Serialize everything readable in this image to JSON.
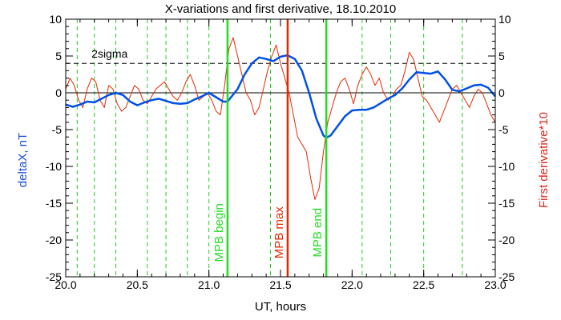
{
  "chart_data": {
    "type": "line",
    "title": "X-variations and first derivative, 18.10.2010",
    "xlabel": "UT, hours",
    "ylabel_left": "deltaX, nT",
    "ylabel_right": "First derivative*10",
    "xlim": [
      20.0,
      23.0
    ],
    "ylim": [
      -25,
      10
    ],
    "x_ticks": [
      "20.0",
      "20.5",
      "21.0",
      "21.5",
      "22.0",
      "22.5",
      "23.0"
    ],
    "y_ticks_left": [
      "10",
      "5",
      "0",
      "-5",
      "-10",
      "-15",
      "-20",
      "-25"
    ],
    "y_ticks_right": [
      "10",
      "5",
      "0",
      "-5",
      "-10",
      "-15",
      "-20",
      "-25"
    ],
    "colors": {
      "deltaX": "#0050e6",
      "derivative": "#e62800",
      "mpb_boundary": "#22dd22",
      "mpb_max": "#e62800",
      "dashed_green": "#22cc22",
      "axis": "#000000",
      "left_label": "#1a4fd6",
      "right_label": "#e0281e"
    },
    "threshold": {
      "label": "2sigma",
      "value": 4.0
    },
    "zero_line": 0,
    "series": [
      {
        "name": "deltaX, nT",
        "axis": "left",
        "x": [
          20.0,
          20.05,
          20.1,
          20.15,
          20.2,
          20.25,
          20.3,
          20.35,
          20.4,
          20.45,
          20.5,
          20.55,
          20.6,
          20.65,
          20.7,
          20.75,
          20.8,
          20.85,
          20.9,
          20.95,
          21.0,
          21.05,
          21.1,
          21.13,
          21.2,
          21.25,
          21.3,
          21.35,
          21.4,
          21.45,
          21.5,
          21.55,
          21.6,
          21.65,
          21.7,
          21.75,
          21.8,
          21.82,
          21.85,
          21.9,
          21.95,
          22.0,
          22.05,
          22.1,
          22.15,
          22.2,
          22.25,
          22.3,
          22.35,
          22.4,
          22.45,
          22.5,
          22.55,
          22.6,
          22.65,
          22.7,
          22.75,
          22.8,
          22.85,
          22.9,
          22.95,
          23.0
        ],
        "y": [
          -1.6,
          -1.9,
          -1.6,
          -1.2,
          -1.3,
          -0.8,
          -0.3,
          0.0,
          -0.3,
          -1.2,
          -1.7,
          -1.3,
          -1.0,
          -0.8,
          -1.1,
          -1.4,
          -1.5,
          -1.4,
          -0.9,
          -0.5,
          0.0,
          -0.6,
          -1.2,
          -1.2,
          0.5,
          2.5,
          4.0,
          4.8,
          4.6,
          4.3,
          4.9,
          5.1,
          4.6,
          3.0,
          0.0,
          -3.5,
          -5.8,
          -6.1,
          -5.8,
          -4.5,
          -3.2,
          -2.4,
          -2.3,
          -2.3,
          -2.0,
          -1.4,
          -0.8,
          -0.3,
          0.6,
          1.8,
          2.8,
          2.7,
          2.6,
          2.9,
          1.8,
          0.4,
          0.2,
          0.6,
          1.0,
          1.1,
          0.7,
          -0.5
        ]
      },
      {
        "name": "First derivative*10",
        "axis": "right",
        "x": [
          20.0,
          20.03,
          20.06,
          20.09,
          20.12,
          20.15,
          20.18,
          20.21,
          20.24,
          20.27,
          20.3,
          20.33,
          20.36,
          20.39,
          20.42,
          20.45,
          20.48,
          20.51,
          20.54,
          20.57,
          20.6,
          20.63,
          20.66,
          20.69,
          20.72,
          20.75,
          20.78,
          20.81,
          20.84,
          20.87,
          20.9,
          20.93,
          20.96,
          20.99,
          21.02,
          21.05,
          21.08,
          21.11,
          21.14,
          21.17,
          21.2,
          21.23,
          21.26,
          21.29,
          21.32,
          21.35,
          21.38,
          21.41,
          21.44,
          21.47,
          21.5,
          21.53,
          21.56,
          21.59,
          21.62,
          21.65,
          21.68,
          21.71,
          21.74,
          21.77,
          21.8,
          21.83,
          21.86,
          21.89,
          21.92,
          21.95,
          21.98,
          22.01,
          22.04,
          22.07,
          22.1,
          22.13,
          22.16,
          22.19,
          22.22,
          22.25,
          22.28,
          22.31,
          22.34,
          22.37,
          22.4,
          22.43,
          22.46,
          22.49,
          22.52,
          22.55,
          22.58,
          22.61,
          22.64,
          22.67,
          22.7,
          22.73,
          22.76,
          22.79,
          22.82,
          22.85,
          22.88,
          22.91,
          22.94,
          22.97,
          23.0
        ],
        "y": [
          0.5,
          2.0,
          1.0,
          -1.0,
          -2.0,
          0.5,
          2.0,
          1.5,
          -1.0,
          -2.0,
          1.0,
          0.5,
          -1.5,
          -2.5,
          -2.0,
          -0.5,
          1.0,
          0.5,
          -1.0,
          -1.5,
          -0.5,
          0.5,
          1.0,
          1.5,
          0.5,
          -0.5,
          -1.0,
          0.0,
          1.5,
          2.5,
          1.0,
          -1.0,
          -0.5,
          0.0,
          -1.0,
          -2.5,
          -3.0,
          1.0,
          6.0,
          7.5,
          5.0,
          2.5,
          0.0,
          -1.0,
          -3.0,
          -2.0,
          0.5,
          3.0,
          5.0,
          6.5,
          4.0,
          2.0,
          0.0,
          -3.0,
          -6.0,
          -7.0,
          -8.0,
          -11.5,
          -14.5,
          -13.0,
          -8.0,
          -4.0,
          -2.0,
          0.0,
          1.5,
          2.0,
          0.5,
          -1.5,
          1.0,
          2.5,
          3.5,
          2.5,
          1.0,
          2.0,
          0.0,
          -1.0,
          -0.5,
          0.5,
          1.0,
          3.0,
          5.5,
          4.5,
          2.0,
          -0.5,
          -1.0,
          -2.0,
          -3.0,
          -4.0,
          -2.5,
          -1.0,
          0.5,
          1.0,
          0.0,
          -1.0,
          -2.0,
          -0.5,
          0.5,
          0.0,
          -1.5,
          -3.0,
          -4.0
        ]
      }
    ],
    "dashed_lines_x": [
      20.08,
      20.2,
      20.35,
      20.57,
      20.7,
      20.85,
      21.0,
      21.43,
      22.07,
      22.27,
      22.5,
      22.77
    ],
    "markers": [
      {
        "label": "MPB begin",
        "x": 21.13,
        "color": "#22dd22"
      },
      {
        "label": "MPB max",
        "x": 21.55,
        "color": "#e62800"
      },
      {
        "label": "MPB end",
        "x": 21.82,
        "color": "#22dd22"
      }
    ]
  }
}
